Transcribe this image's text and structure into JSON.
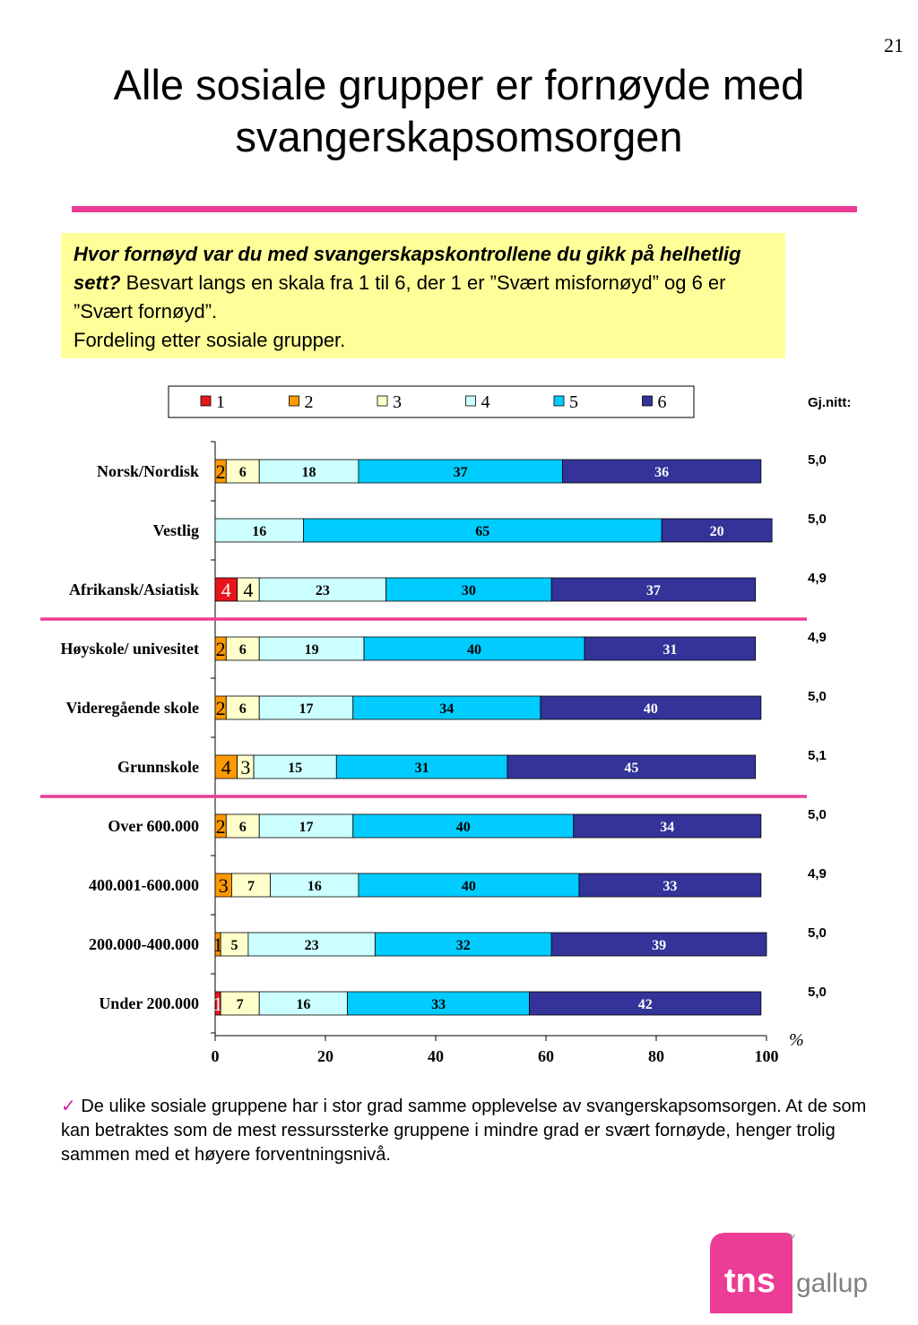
{
  "page_number": "21",
  "title_line1": "Alle sosiale grupper er fornøyde med",
  "title_line2": "svangerskapsomsorgen",
  "question": {
    "bold_part": "Hvor fornøyd var du med svangerskapskontrollene du gikk på helhetlig sett?",
    "rest": " Besvart langs en skala fra 1 til 6, der 1 er ”Svært misfornøyd” og 6 er ”Svært fornøyd”.",
    "line2": "Fordeling etter sosiale grupper."
  },
  "gjnitt_header": "Gj.nitt:",
  "unit_label": "%",
  "footnote": {
    "check": "✓",
    "text": " De ulike sosiale gruppene har i stor grad samme opplevelse av svangerskapsomsorgen. At de som kan betraktes som de mest ressurssterke gruppene i mindre grad er svært fornøyde, henger trolig sammen med et høyere forventningsnivå."
  },
  "logo": {
    "text1": "tns",
    "text2": "gallup",
    "tm": "TM"
  },
  "colors": {
    "1": "#e8141c",
    "2": "#ff9900",
    "3": "#ffffcc",
    "4": "#ccffff",
    "5": "#00ccff",
    "6": "#333399",
    "accent": "#ec3d96",
    "question_bg": "#ffff99"
  },
  "chart_data": {
    "type": "bar",
    "orientation": "horizontal",
    "stacked": true,
    "categories": [
      "Norsk/Nordisk",
      "Vestlig",
      "Afrikansk/Asiatisk",
      "Høyskole/ univesitet",
      "Videregående skole",
      "Grunnskole",
      "Over 600.000",
      "400.001-600.000",
      "200.000-400.000",
      "Under 200.000"
    ],
    "series": [
      {
        "name": "1",
        "values": [
          0,
          0,
          4,
          0,
          0,
          0,
          0,
          0,
          0,
          1
        ]
      },
      {
        "name": "2",
        "values": [
          2,
          0,
          0,
          2,
          2,
          4,
          2,
          3,
          1,
          0
        ]
      },
      {
        "name": "3",
        "values": [
          6,
          0,
          4,
          6,
          6,
          3,
          6,
          7,
          5,
          7
        ]
      },
      {
        "name": "4",
        "values": [
          18,
          16,
          23,
          19,
          17,
          15,
          17,
          16,
          23,
          16
        ]
      },
      {
        "name": "5",
        "values": [
          37,
          65,
          30,
          40,
          34,
          31,
          40,
          40,
          32,
          33
        ]
      },
      {
        "name": "6",
        "values": [
          36,
          20,
          37,
          31,
          40,
          45,
          34,
          33,
          39,
          42
        ]
      }
    ],
    "averages": [
      "5,0",
      "5,0",
      "4,9",
      "4,9",
      "5,0",
      "5,1",
      "5,0",
      "4,9",
      "5,0",
      "5,0"
    ],
    "xlim": [
      0,
      100
    ],
    "xticks": [
      0,
      20,
      40,
      60,
      80,
      100
    ],
    "legend_position": "top",
    "group_separators_after": [
      2,
      5
    ]
  }
}
